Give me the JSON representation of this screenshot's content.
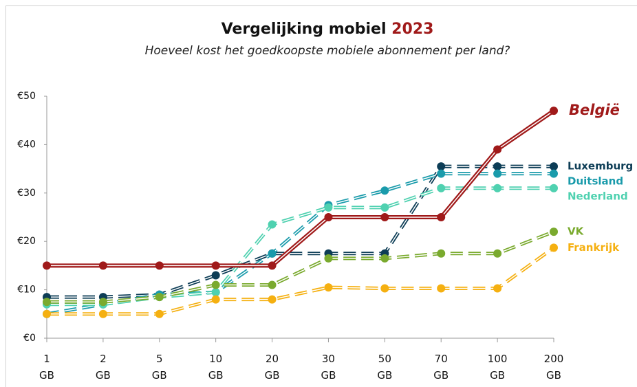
{
  "chart_data": {
    "type": "line",
    "title": [
      "Vergelijking mobiel",
      "2023"
    ],
    "title_colors": [
      "#111111",
      "#a01a1a"
    ],
    "subtitle": "Hoeveel kost het goedkoopste mobiele abonnement per land?",
    "categories": [
      "1 GB",
      "2 GB",
      "5 GB",
      "10 GB",
      "20 GB",
      "30 GB",
      "50 GB",
      "70 GB",
      "100 GB",
      "200 GB"
    ],
    "ylim": [
      0,
      50
    ],
    "yticks": [
      {
        "value": 0,
        "label": "€0"
      },
      {
        "value": 10,
        "label": "€10"
      },
      {
        "value": 20,
        "label": "€20"
      },
      {
        "value": 30,
        "label": "€30"
      },
      {
        "value": 40,
        "label": "€40"
      },
      {
        "value": 50,
        "label": "€50"
      }
    ],
    "grid": false,
    "series": [
      {
        "name": "Luxemburg",
        "color": "#0d3d56",
        "line_style": "dashed",
        "values": [
          8.5,
          8.5,
          9,
          13,
          17.5,
          17.5,
          17.5,
          35.5,
          35.5,
          35.5
        ]
      },
      {
        "name": "Duitsland",
        "color": "#1a9bab",
        "line_style": "dashed",
        "values": [
          5,
          7,
          9,
          9.5,
          17.5,
          27.5,
          30.5,
          34,
          34,
          34
        ]
      },
      {
        "name": "Nederland",
        "color": "#4fd1b0",
        "line_style": "dashed",
        "values": [
          7,
          7,
          8.5,
          9.5,
          23.5,
          27,
          27,
          31,
          31,
          31
        ]
      },
      {
        "name": "VK",
        "color": "#7aaa2e",
        "line_style": "dashed",
        "values": [
          7.5,
          7.5,
          8.5,
          11,
          11,
          16.5,
          16.5,
          17.5,
          17.5,
          22
        ]
      },
      {
        "name": "Frankrijk",
        "color": "#f5b011",
        "line_style": "dashed",
        "values": [
          5,
          5,
          5,
          8,
          8,
          10.5,
          10.3,
          10.3,
          10.3,
          18.7
        ]
      },
      {
        "name": "België",
        "color": "#a01a1a",
        "line_style": "solid",
        "values": [
          15,
          15,
          15,
          15,
          15,
          25,
          25,
          25,
          39,
          47
        ]
      }
    ]
  }
}
